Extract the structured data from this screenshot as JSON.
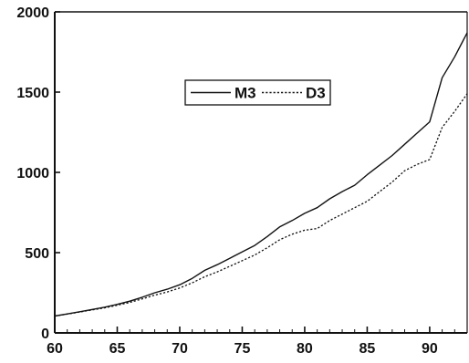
{
  "chart_data": {
    "type": "line",
    "title": "",
    "xlabel": "",
    "ylabel": "",
    "xlim": [
      60,
      93
    ],
    "ylim": [
      0,
      2000
    ],
    "x_ticks": [
      60,
      65,
      70,
      75,
      80,
      85,
      90
    ],
    "y_ticks": [
      0,
      500,
      1000,
      1500,
      2000
    ],
    "grid": false,
    "legend_position": "upper-center",
    "x": [
      60,
      61,
      62,
      63,
      64,
      65,
      66,
      67,
      68,
      69,
      70,
      71,
      72,
      73,
      74,
      75,
      76,
      77,
      78,
      79,
      80,
      81,
      82,
      83,
      84,
      85,
      86,
      87,
      88,
      89,
      90,
      91,
      92,
      93
    ],
    "series": [
      {
        "name": "M3",
        "style": "solid",
        "color": "#111111",
        "values": [
          105,
          118,
          132,
          146,
          160,
          178,
          198,
          222,
          250,
          272,
          300,
          340,
          390,
          425,
          465,
          505,
          545,
          600,
          660,
          700,
          745,
          780,
          835,
          880,
          920,
          985,
          1045,
          1105,
          1175,
          1245,
          1315,
          1590,
          1720,
          1870
        ]
      },
      {
        "name": "D3",
        "style": "dotted",
        "color": "#111111",
        "values": [
          105,
          117,
          130,
          143,
          156,
          172,
          190,
          212,
          235,
          255,
          280,
          312,
          350,
          380,
          415,
          450,
          485,
          530,
          580,
          615,
          640,
          650,
          700,
          740,
          780,
          820,
          880,
          940,
          1010,
          1050,
          1080,
          1280,
          1380,
          1490
        ]
      }
    ]
  }
}
